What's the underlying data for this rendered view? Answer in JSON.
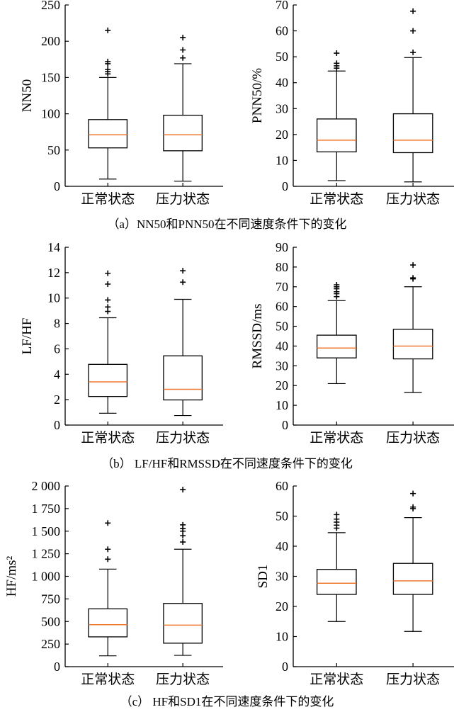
{
  "figure": {
    "captions": [
      "（a）NN50和PNN50在不同速度条件下的变化",
      "（b） LF/HF和RMSSD在不同速度条件下的变化",
      "（c） HF和SD1在不同速度条件下的变化"
    ]
  },
  "chart_data": [
    {
      "type": "boxplot",
      "panel": "a-left",
      "categories": [
        "正常状态",
        "压力状态"
      ],
      "ylabel": "NN50",
      "ylim": [
        0,
        250
      ],
      "yticks": [
        0,
        50,
        100,
        150,
        200,
        250
      ],
      "ytick_labels": [
        "0",
        "50",
        "100",
        "150",
        "200",
        "250"
      ],
      "boxes": [
        {
          "category": "正常状态",
          "whisker_low": 10,
          "q1": 53,
          "median": 71,
          "q3": 92,
          "whisker_high": 150,
          "outliers": [
            155,
            158,
            161,
            169,
            172,
            215
          ]
        },
        {
          "category": "压力状态",
          "whisker_low": 7,
          "q1": 49,
          "median": 71,
          "q3": 98,
          "whisker_high": 169,
          "outliers": [
            177,
            188,
            205
          ]
        }
      ],
      "colors": {
        "box": "#000000",
        "median": "#f07830"
      }
    },
    {
      "type": "boxplot",
      "panel": "a-right",
      "categories": [
        "正常状态",
        "压力状态"
      ],
      "ylabel": "PNN50/%",
      "ylim": [
        0,
        70
      ],
      "yticks": [
        0,
        10,
        20,
        30,
        40,
        50,
        60,
        70
      ],
      "ytick_labels": [
        "0",
        "10",
        "20",
        "30",
        "40",
        "50",
        "60",
        "70"
      ],
      "boxes": [
        {
          "category": "正常状态",
          "whisker_low": 2.2,
          "q1": 13.3,
          "median": 17.8,
          "q3": 26.0,
          "whisker_high": 44.5,
          "outliers": [
            45.6,
            46.5,
            47.5,
            51.4
          ]
        },
        {
          "category": "压力状态",
          "whisker_low": 1.7,
          "q1": 13.0,
          "median": 17.8,
          "q3": 28.0,
          "whisker_high": 49.7,
          "outliers": [
            51.7,
            60.0,
            67.6
          ]
        }
      ],
      "colors": {
        "box": "#000000",
        "median": "#f07830"
      }
    },
    {
      "type": "boxplot",
      "panel": "b-left",
      "categories": [
        "正常状态",
        "压力状态"
      ],
      "ylabel": "LF/HF",
      "ylim": [
        0,
        14
      ],
      "yticks": [
        0,
        2,
        4,
        6,
        8,
        10,
        12,
        14
      ],
      "ytick_labels": [
        "0",
        "2",
        "4",
        "6",
        "8",
        "10",
        "12",
        "14"
      ],
      "boxes": [
        {
          "category": "正常状态",
          "whisker_low": 0.93,
          "q1": 2.25,
          "median": 3.4,
          "q3": 4.78,
          "whisker_high": 8.45,
          "outliers": [
            8.95,
            9.3,
            9.85,
            11.1,
            11.95
          ]
        },
        {
          "category": "压力状态",
          "whisker_low": 0.75,
          "q1": 1.98,
          "median": 2.82,
          "q3": 5.45,
          "whisker_high": 9.9,
          "outliers": [
            11.25,
            12.15
          ]
        }
      ],
      "colors": {
        "box": "#000000",
        "median": "#f07830"
      }
    },
    {
      "type": "boxplot",
      "panel": "b-right",
      "categories": [
        "正常状态",
        "压力状态"
      ],
      "ylabel": "RMSSD/ms",
      "ylim": [
        0,
        90
      ],
      "yticks": [
        0,
        10,
        20,
        30,
        40,
        50,
        60,
        70,
        80,
        90
      ],
      "ytick_labels": [
        "0",
        "10",
        "20",
        "30",
        "40",
        "50",
        "60",
        "70",
        "80",
        "90"
      ],
      "boxes": [
        {
          "category": "正常状态",
          "whisker_low": 21,
          "q1": 34,
          "median": 39,
          "q3": 45.5,
          "whisker_high": 63,
          "outliers": [
            65,
            66.5,
            67.5,
            69,
            70,
            71
          ]
        },
        {
          "category": "压力状态",
          "whisker_low": 16.5,
          "q1": 33.5,
          "median": 40,
          "q3": 48.5,
          "whisker_high": 70,
          "outliers": [
            74,
            74.5,
            81
          ]
        }
      ],
      "colors": {
        "box": "#000000",
        "median": "#f07830"
      }
    },
    {
      "type": "boxplot",
      "panel": "c-left",
      "categories": [
        "正常状态",
        "压力状态"
      ],
      "ylabel": "HF/ms²",
      "ylim": [
        0,
        2000
      ],
      "yticks": [
        0,
        250,
        500,
        750,
        1000,
        1250,
        1500,
        1750,
        2000
      ],
      "ytick_labels": [
        "0",
        "250",
        "500",
        "750",
        "1 000",
        "1 250",
        "1 500",
        "1 750",
        "2 000"
      ],
      "boxes": [
        {
          "category": "正常状态",
          "whisker_low": 120,
          "q1": 330,
          "median": 465,
          "q3": 640,
          "whisker_high": 1080,
          "outliers": [
            1190,
            1300,
            1590
          ]
        },
        {
          "category": "压力状态",
          "whisker_low": 125,
          "q1": 260,
          "median": 460,
          "q3": 700,
          "whisker_high": 1300,
          "outliers": [
            1380,
            1450,
            1500,
            1530,
            1570,
            1960
          ]
        }
      ],
      "colors": {
        "box": "#000000",
        "median": "#f07830"
      }
    },
    {
      "type": "boxplot",
      "panel": "c-right",
      "categories": [
        "正常状态",
        "压力状态"
      ],
      "ylabel": "SD1",
      "ylim": [
        0,
        60
      ],
      "yticks": [
        0,
        10,
        20,
        30,
        40,
        50,
        60
      ],
      "ytick_labels": [
        "0",
        "10",
        "20",
        "30",
        "40",
        "50",
        "60"
      ],
      "boxes": [
        {
          "category": "正常状态",
          "whisker_low": 15,
          "q1": 24,
          "median": 27.7,
          "q3": 32.3,
          "whisker_high": 44.5,
          "outliers": [
            46,
            47,
            48,
            49,
            50.5
          ]
        },
        {
          "category": "压力状态",
          "whisker_low": 11.7,
          "q1": 24,
          "median": 28.5,
          "q3": 34.3,
          "whisker_high": 49.5,
          "outliers": [
            52.5,
            53,
            57.5
          ]
        }
      ],
      "colors": {
        "box": "#000000",
        "median": "#f07830"
      }
    }
  ]
}
